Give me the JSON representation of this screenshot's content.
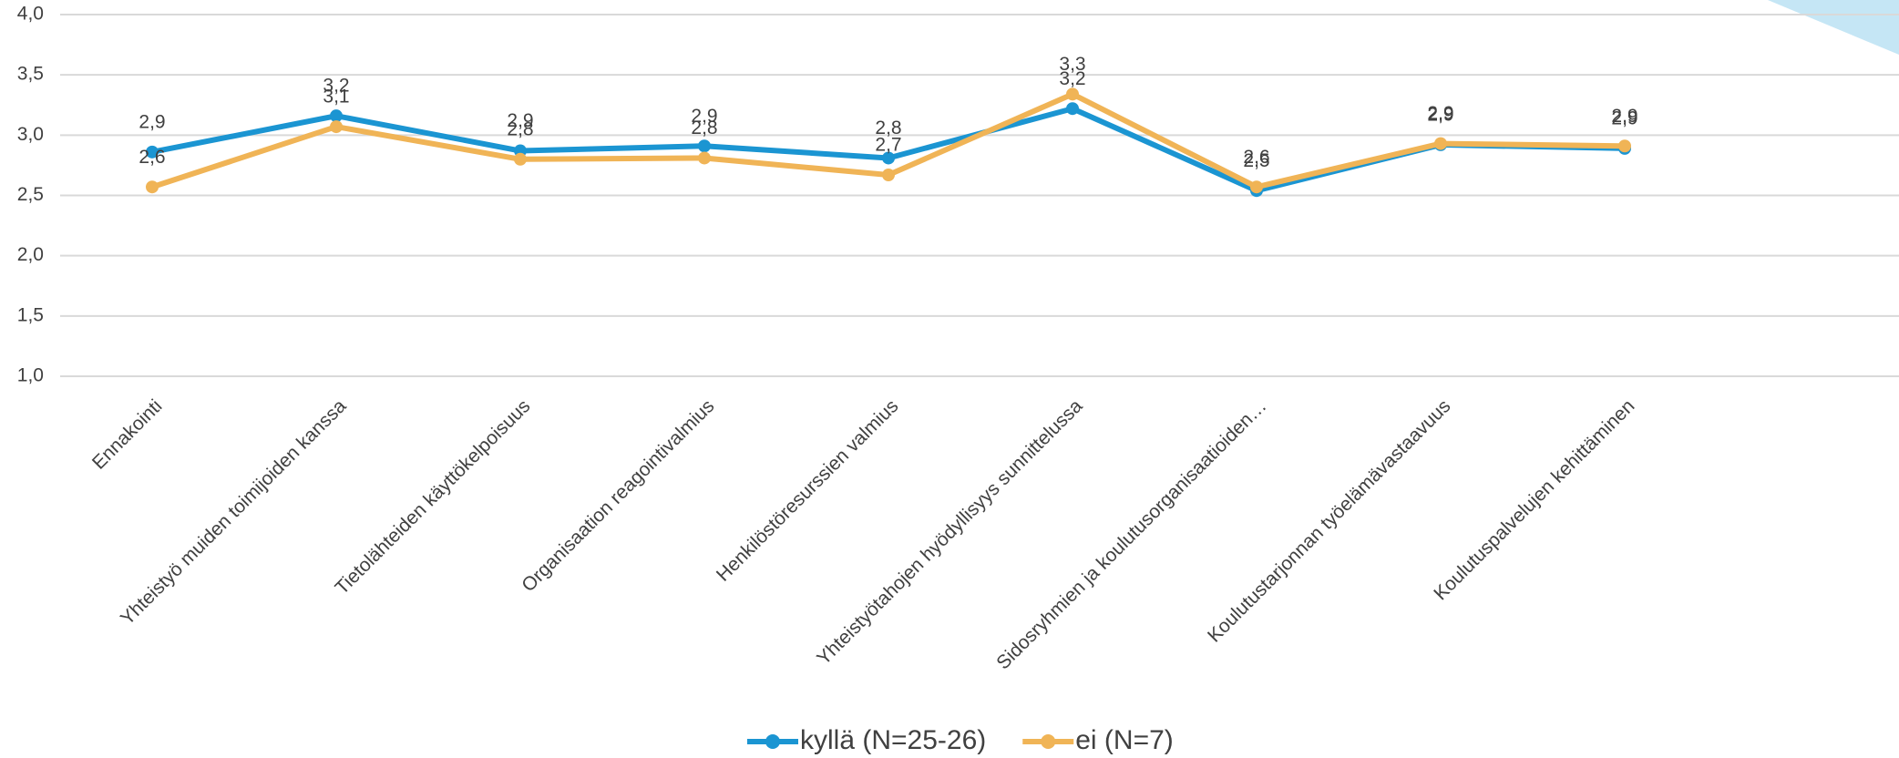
{
  "chart_data": {
    "type": "line",
    "categories": [
      "Ennakointi",
      "Yhteistyö muiden toimijoiden kanssa",
      "Tietolähteiden käyttökelpoisuus",
      "Organisaation reagointivalmius",
      "Henkilöstöresurssien valmius",
      "Yhteistyötahojen hyödyllisyys sunnittelussa",
      "Sidosryhmien ja koulutusorganisaatioiden…",
      "Koulutustarjonnan työelämävastaavuus",
      "Koulutuspalvelujen kehittäminen"
    ],
    "series": [
      {
        "name": "kyllä (N=25-26)",
        "color": "#1b95d2",
        "values": [
          2.86,
          3.16,
          2.87,
          2.91,
          2.81,
          3.22,
          2.54,
          2.92,
          2.89
        ],
        "value_labels": [
          "2,9",
          "3,2",
          "2,9",
          "2,9",
          "2,8",
          "3,2",
          "2,5",
          "2,9",
          "2,9"
        ]
      },
      {
        "name": "ei (N=7)",
        "color": "#f0b456",
        "values": [
          2.57,
          3.07,
          2.8,
          2.81,
          2.67,
          3.34,
          2.57,
          2.93,
          2.91
        ],
        "value_labels": [
          "2,6",
          "3,1",
          "2,8",
          "2,8",
          "2,7",
          "3,3",
          "2,6",
          "2,9",
          "2,9"
        ]
      }
    ],
    "ylim": [
      1.0,
      4.0
    ],
    "yticks": [
      {
        "value": 1.0,
        "label": "1,0"
      },
      {
        "value": 1.5,
        "label": "1,5"
      },
      {
        "value": 2.0,
        "label": "2,0"
      },
      {
        "value": 2.5,
        "label": "2,5"
      },
      {
        "value": 3.0,
        "label": "3,0"
      },
      {
        "value": 3.5,
        "label": "3,5"
      },
      {
        "value": 4.0,
        "label": "4,0"
      }
    ],
    "grid": true,
    "legend": "bottom"
  }
}
